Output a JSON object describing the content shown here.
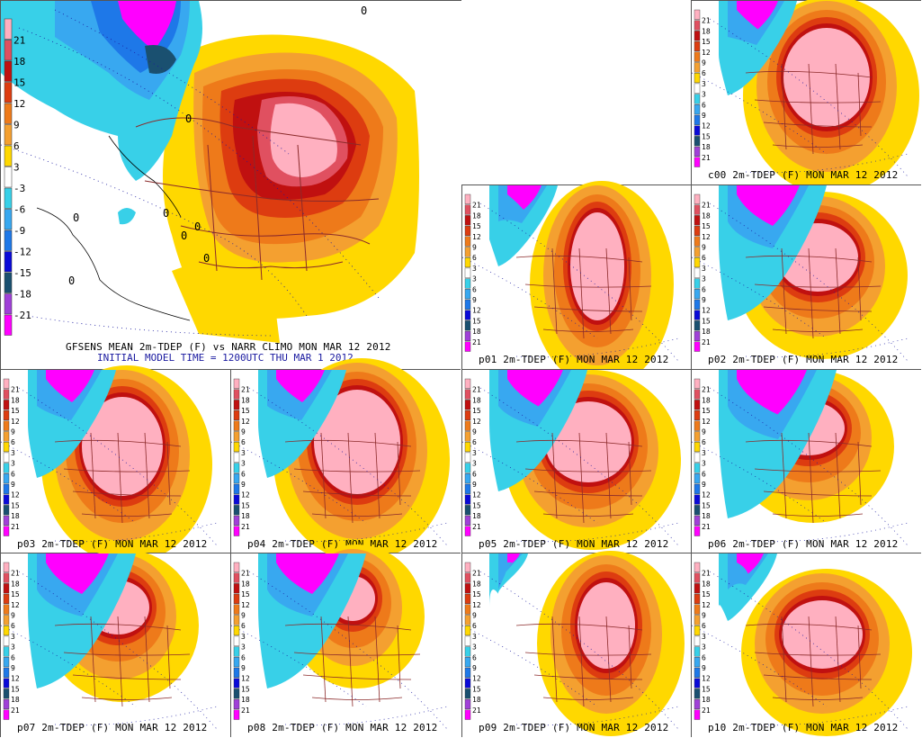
{
  "colors": {
    "legend": [
      "#ff00ff",
      "#a040d8",
      "#1a5070",
      "#0a0ad8",
      "#1e78e8",
      "#38a8f0",
      "#38d0e8",
      "#ffffff",
      "#ffd800",
      "#f4a030",
      "#ee7a1a",
      "#dd3c10",
      "#c01010",
      "#e05060",
      "#ffb0c0"
    ]
  },
  "legend_labels": [
    "21",
    "18",
    "15",
    "12",
    "9",
    "6",
    "3",
    "-3",
    "-6",
    "-9",
    "-12",
    "-15",
    "-18",
    "-21"
  ],
  "legend_small_labels": [
    "21",
    "18",
    "15",
    "12",
    "9",
    "6",
    "3",
    "3",
    "6",
    "9",
    "12",
    "15",
    "18",
    "21"
  ],
  "main": {
    "title": "GFSENS MEAN 2m-TDEP (F) vs NARR CLIMO MON MAR 12 2012",
    "subtitle": "INITIAL MODEL TIME = 1200UTC THU MAR 1 2012"
  },
  "panels": [
    {
      "id": "c00",
      "caption": "c00 2m-TDEP (F) MON MAR 12 2012"
    },
    {
      "id": "p01",
      "caption": "p01 2m-TDEP (F) MON MAR 12 2012"
    },
    {
      "id": "p02",
      "caption": "p02 2m-TDEP (F) MON MAR 12 2012"
    },
    {
      "id": "p03",
      "caption": "p03 2m-TDEP (F) MON MAR 12 2012"
    },
    {
      "id": "p04",
      "caption": "p04 2m-TDEP (F) MON MAR 12 2012"
    },
    {
      "id": "p05",
      "caption": "p05 2m-TDEP (F) MON MAR 12 2012"
    },
    {
      "id": "p06",
      "caption": "p06 2m-TDEP (F) MON MAR 12 2012"
    },
    {
      "id": "p07",
      "caption": "p07 2m-TDEP (F) MON MAR 12 2012"
    },
    {
      "id": "p08",
      "caption": "p08 2m-TDEP (F) MON MAR 12 2012"
    },
    {
      "id": "p09",
      "caption": "p09 2m-TDEP (F) MON MAR 12 2012"
    },
    {
      "id": "p10",
      "caption": "p10 2m-TDEP (F) MON MAR 12 2012"
    }
  ]
}
